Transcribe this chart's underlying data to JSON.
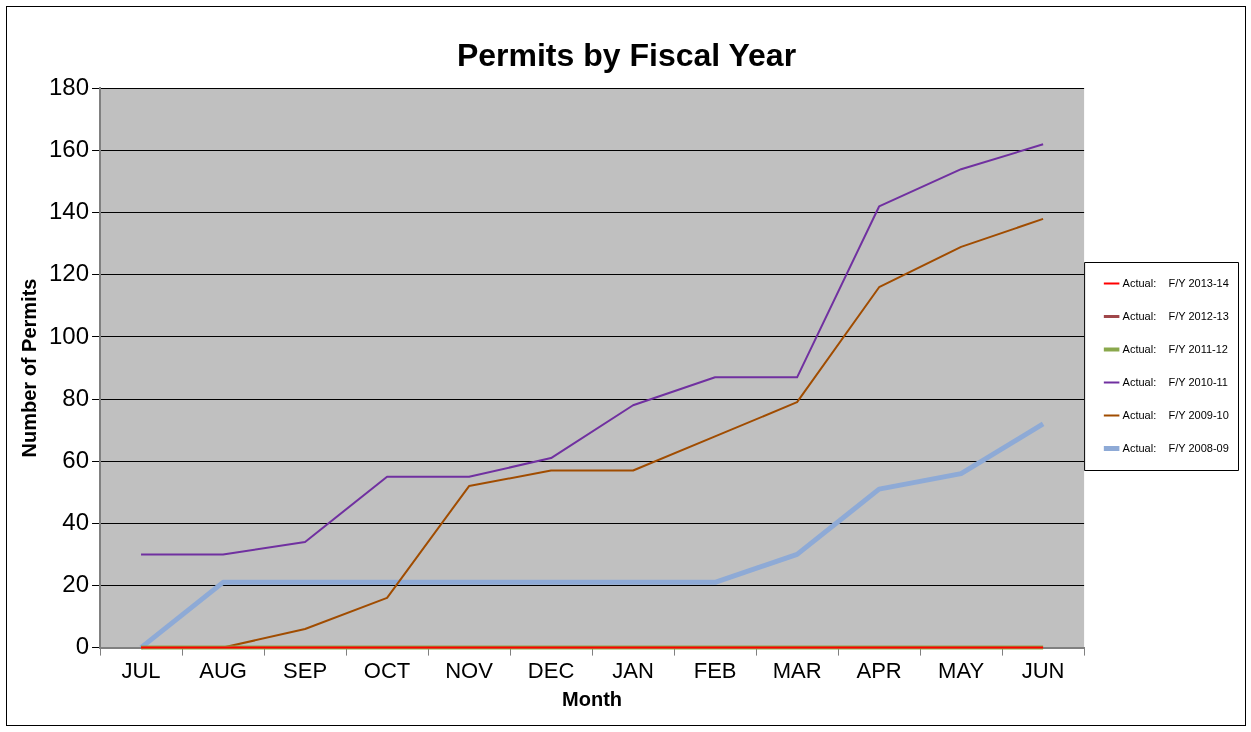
{
  "chart_data": {
    "type": "line",
    "title": "Permits by Fiscal Year",
    "xlabel": "Month",
    "ylabel": "Number of Permits",
    "categories": [
      "JUL",
      "AUG",
      "SEP",
      "OCT",
      "NOV",
      "DEC",
      "JAN",
      "FEB",
      "MAR",
      "APR",
      "MAY",
      "JUN"
    ],
    "ylim": [
      0,
      180
    ],
    "yticks": [
      0,
      20,
      40,
      60,
      80,
      100,
      120,
      140,
      160,
      180
    ],
    "grid": "y",
    "legend": "right",
    "marker": "none",
    "line_style": "solid",
    "series": [
      {
        "name": "Actual:    F/Y 2013-14",
        "color": "#ff0000",
        "values": [
          0,
          0,
          0,
          0,
          0,
          0,
          0,
          0,
          0,
          0,
          0,
          0
        ]
      },
      {
        "name": "Actual:    F/Y 2012-13",
        "color": "#a0474a",
        "values": [
          null,
          null,
          null,
          null,
          null,
          null,
          null,
          null,
          null,
          null,
          null,
          null
        ]
      },
      {
        "name": "Actual:    F/Y 2011-12",
        "color": "#8aa84c",
        "values": [
          0,
          0,
          0,
          0,
          0,
          0,
          0,
          0,
          0,
          0,
          0,
          0
        ]
      },
      {
        "name": "Actual:    F/Y 2010-11",
        "color": "#7030a0",
        "values": [
          30,
          30,
          34,
          55,
          55,
          61,
          78,
          87,
          87,
          142,
          154,
          162
        ]
      },
      {
        "name": "Actual:    F/Y 2009-10",
        "color": "#a04c00",
        "values": [
          0,
          0,
          6,
          16,
          52,
          57,
          57,
          68,
          79,
          116,
          129,
          138
        ]
      },
      {
        "name": "Actual:    F/Y 2008-09",
        "color": "#8eaad6",
        "values": [
          0,
          21,
          21,
          21,
          21,
          21,
          21,
          21,
          30,
          51,
          56,
          72
        ]
      }
    ]
  }
}
